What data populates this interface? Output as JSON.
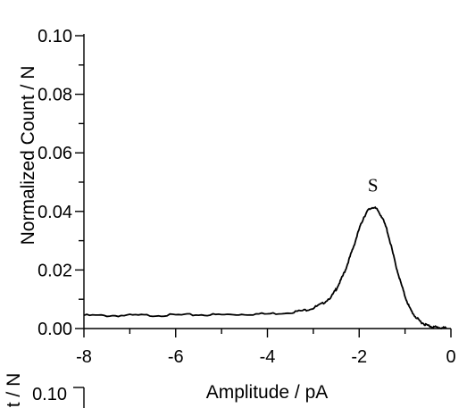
{
  "chart_data": {
    "type": "line",
    "title": "",
    "xlabel": "Amplitude / pA",
    "ylabel": "Normalized Count / N",
    "xlim": [
      -8,
      0
    ],
    "ylim": [
      0.0,
      0.1
    ],
    "x_ticks": [
      "-8",
      "-6",
      "-4",
      "-2",
      "0"
    ],
    "y_ticks": [
      "0.00",
      "0.02",
      "0.04",
      "0.06",
      "0.08",
      "0.10"
    ],
    "grid": false,
    "annotations": [
      {
        "text": "S",
        "x": -1.7,
        "y": 0.049
      }
    ],
    "series": [
      {
        "x": [
          -8.0,
          -7.5,
          -7.0,
          -6.5,
          -6.0,
          -5.5,
          -5.0,
          -4.5,
          -4.0,
          -3.5,
          -3.2,
          -3.0,
          -2.8,
          -2.6,
          -2.5,
          -2.4,
          -2.3,
          -2.2,
          -2.1,
          -2.0,
          -1.9,
          -1.8,
          -1.7,
          -1.6,
          -1.5,
          -1.4,
          -1.3,
          -1.2,
          -1.1,
          -1.0,
          -0.9,
          -0.8,
          -0.7,
          -0.6,
          -0.5,
          -0.4,
          -0.3,
          -0.2,
          -0.1
        ],
        "y": [
          0.0045,
          0.0044,
          0.0045,
          0.0045,
          0.0046,
          0.0047,
          0.0047,
          0.0049,
          0.005,
          0.0055,
          0.0062,
          0.007,
          0.0085,
          0.011,
          0.0135,
          0.0165,
          0.02,
          0.0245,
          0.029,
          0.034,
          0.038,
          0.0405,
          0.0415,
          0.0405,
          0.038,
          0.034,
          0.028,
          0.0215,
          0.016,
          0.011,
          0.007,
          0.0045,
          0.0028,
          0.0017,
          0.001,
          0.0006,
          0.0004,
          0.0002,
          0.0001
        ]
      }
    ]
  },
  "second_panel": {
    "ylabel_fragment": "t / N",
    "tick_fragment": "0.10"
  }
}
